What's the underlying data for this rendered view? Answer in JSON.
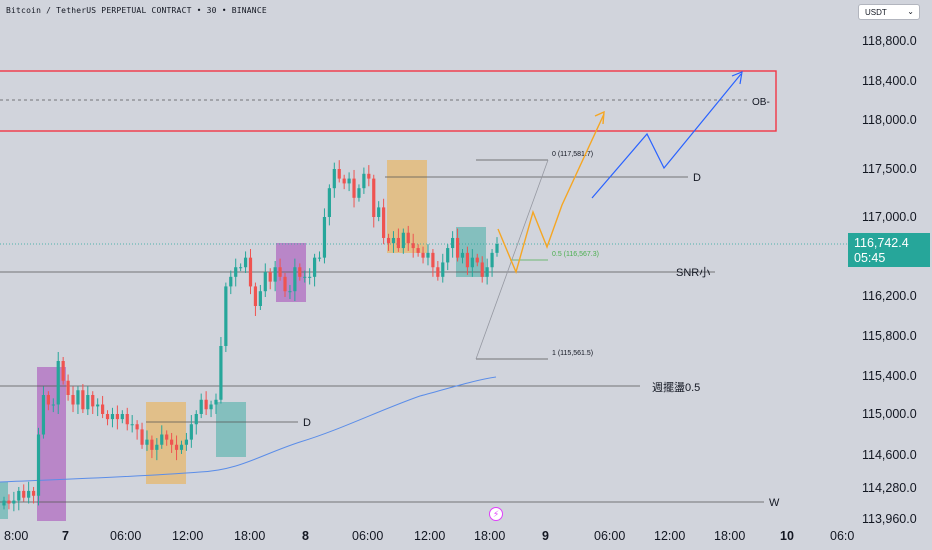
{
  "header": {
    "symbol_line": "Bitcoin / TetherUS PERPETUAL CONTRACT • 30 • BINANCE"
  },
  "currency_button": {
    "label": "USDT",
    "icon": "chevron-down-icon"
  },
  "price_label": {
    "price": "116,742.4",
    "countdown": "05:45",
    "color": "#26a69a"
  },
  "chart_data": {
    "type": "candlestick",
    "y_axis_ticks": [
      118800,
      118400,
      118000,
      117500,
      117000,
      116200,
      115800,
      115400,
      115000,
      114600,
      114280,
      113960
    ],
    "y_axis_tick_labels": [
      "118,800.0",
      "118,400.0",
      "118,000.0",
      "117,500.0",
      "117,000.0",
      "116,200.0",
      "115,800.0",
      "115,400.0",
      "115,000.0",
      "114,600.0",
      "114,280.0",
      "113,960.0"
    ],
    "x_axis_tick_labels": [
      "8:00",
      "7",
      "06:00",
      "12:00",
      "18:00",
      "8",
      "06:00",
      "12:00",
      "18:00",
      "9",
      "06:00",
      "12:00",
      "18:00",
      "10",
      "06:0"
    ],
    "current_price": 116742.4,
    "annotations": [
      {
        "label": "OB-",
        "kind": "zone",
        "color": "#f23645"
      },
      {
        "label": "D",
        "kind": "level"
      },
      {
        "label": "SNR小",
        "kind": "level"
      },
      {
        "label": "週擺盪0.5",
        "kind": "level"
      },
      {
        "label": "D",
        "kind": "level"
      },
      {
        "label": "W",
        "kind": "level"
      }
    ],
    "fibonacci": [
      {
        "ratio": "0",
        "label": "0 (117,581.7)"
      },
      {
        "ratio": "0.5",
        "label": "0.5 (116,567.3)"
      },
      {
        "ratio": "1",
        "label": "1 (115,561.5)"
      }
    ],
    "colors": {
      "up": "#26a69a",
      "down": "#ef5350",
      "ma": "#5b8de8",
      "projection_orange": "#f5a623",
      "projection_blue": "#2962ff"
    }
  }
}
